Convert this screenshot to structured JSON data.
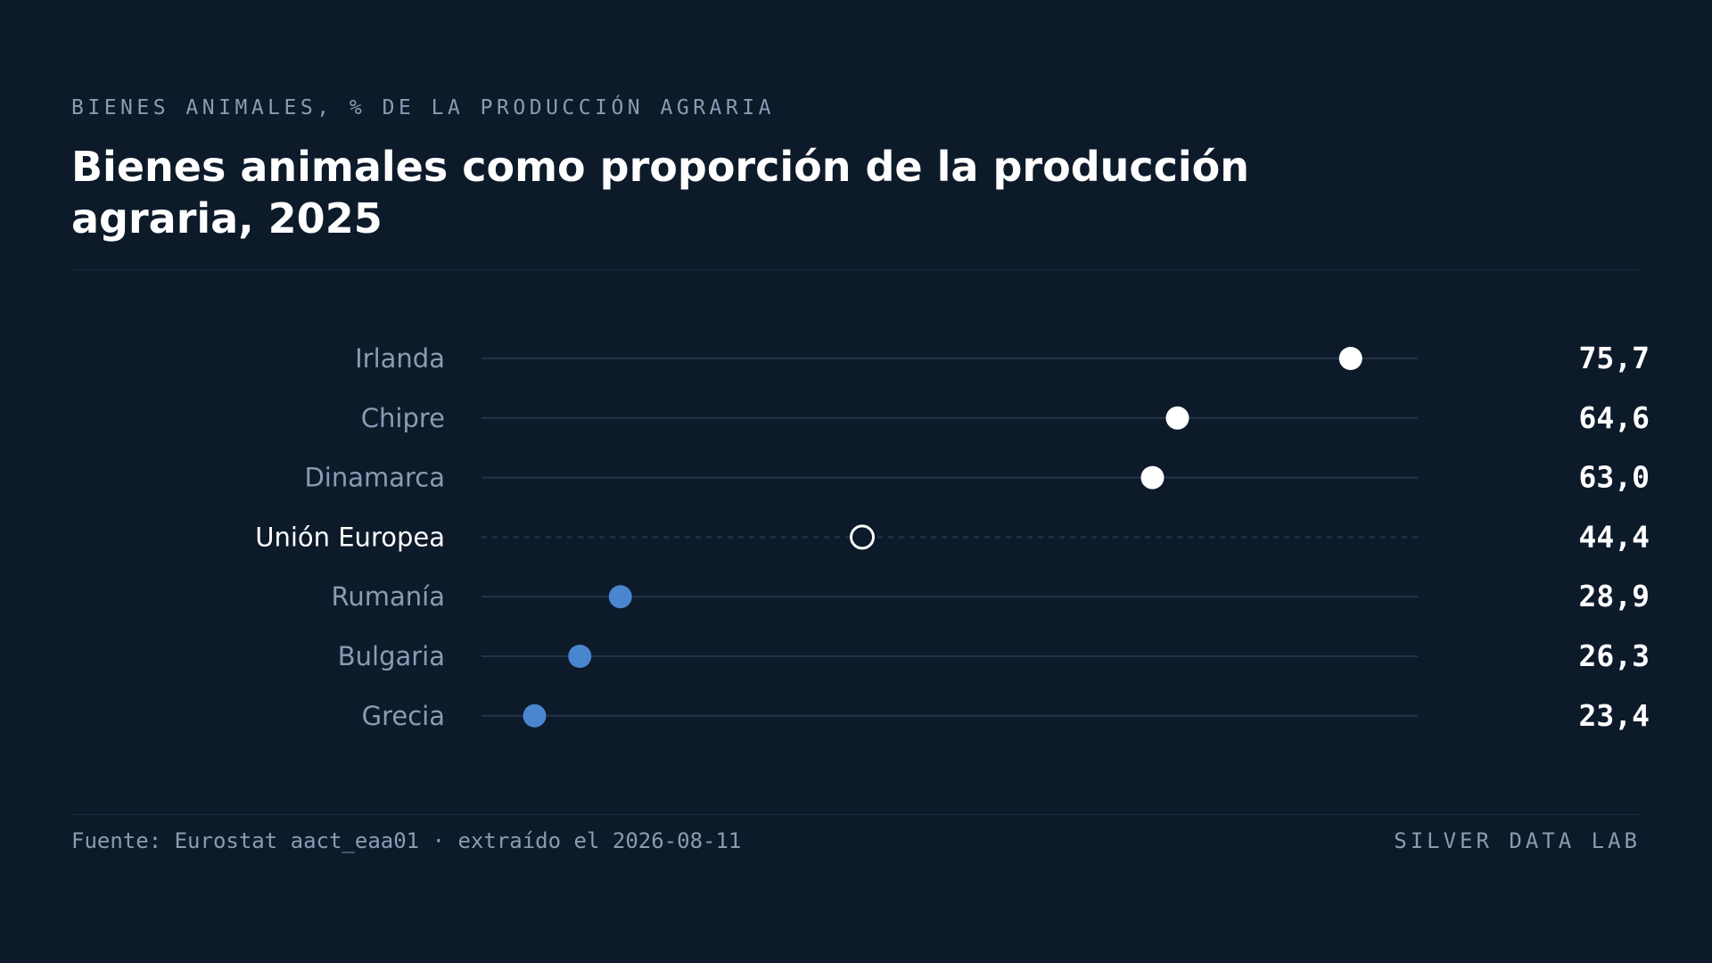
{
  "header": {
    "kicker": "BIENES ANIMALES, % DE LA PRODUCCIÓN AGRARIA",
    "title": "Bienes animales como proporción de la producción agraria, 2025"
  },
  "chart_data": {
    "type": "dot",
    "x_range": [
      20,
      80
    ],
    "grid": false,
    "categories": [
      "Irlanda",
      "Chipre",
      "Dinamarca",
      "Unión Europea",
      "Rumanía",
      "Bulgaria",
      "Grecia"
    ],
    "values": [
      75.7,
      64.6,
      63.0,
      44.4,
      28.9,
      26.3,
      23.4
    ],
    "value_labels": [
      "75,7",
      "64,6",
      "63,0",
      "44,4",
      "28,9",
      "26,3",
      "23,4"
    ],
    "reference_category": "Unión Europea",
    "colors": {
      "high": "#ffffff",
      "low": "#4a86d0",
      "reference_fill": "#0d1a2a",
      "reference_stroke": "#ffffff",
      "track": "#233449",
      "label": "#8a9bb4",
      "label_reference": "#ffffff",
      "value": "#ffffff"
    }
  },
  "footer": {
    "source": "Fuente: Eurostat aact_eaa01 · extraído el 2026-08-11",
    "brand": "SILVER DATA LAB"
  }
}
